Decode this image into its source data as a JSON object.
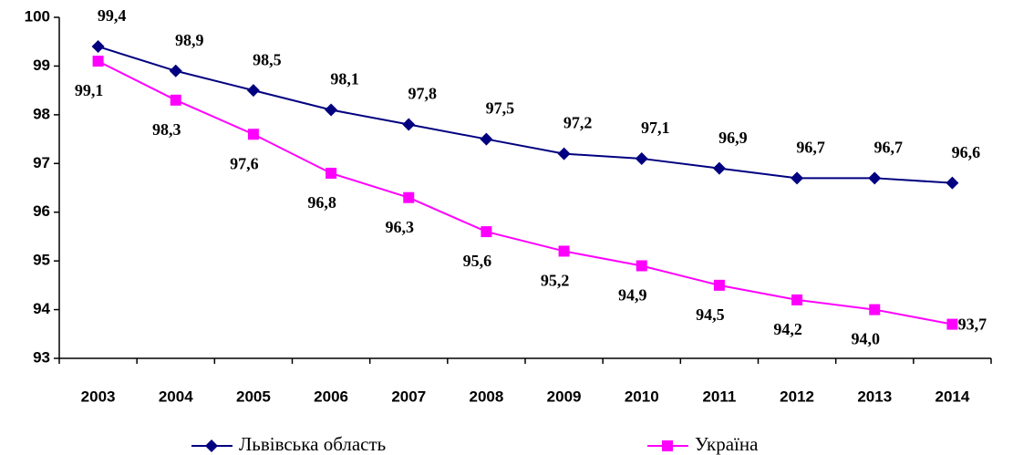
{
  "chart_data": {
    "type": "line",
    "categories": [
      "2003",
      "2004",
      "2005",
      "2006",
      "2007",
      "2008",
      "2009",
      "2010",
      "2011",
      "2012",
      "2013",
      "2014"
    ],
    "series": [
      {
        "name": "Львівська область",
        "color": "#000080",
        "marker": "diamond",
        "values": [
          99.4,
          98.9,
          98.5,
          98.1,
          97.8,
          97.5,
          97.2,
          97.1,
          96.9,
          96.7,
          96.7,
          96.6
        ],
        "value_labels": [
          "99,4",
          "98,9",
          "98,5",
          "98,1",
          "97,8",
          "97,5",
          "97,2",
          "97,1",
          "96,9",
          "96,7",
          "96,7",
          "96,6"
        ]
      },
      {
        "name": "Україна",
        "color": "#ff00ff",
        "marker": "square",
        "values": [
          99.1,
          98.3,
          97.6,
          96.8,
          96.3,
          95.6,
          95.2,
          94.9,
          94.5,
          94.2,
          94.0,
          93.7
        ],
        "value_labels": [
          "99,1",
          "98,3",
          "97,6",
          "96,8",
          "96,3",
          "95,6",
          "95,2",
          "94,9",
          "94,5",
          "94,2",
          "94,0",
          "93,7"
        ]
      }
    ],
    "ylim": [
      93,
      100
    ],
    "yticks": [
      93,
      94,
      95,
      96,
      97,
      98,
      99,
      100
    ],
    "legend": "bottom"
  }
}
